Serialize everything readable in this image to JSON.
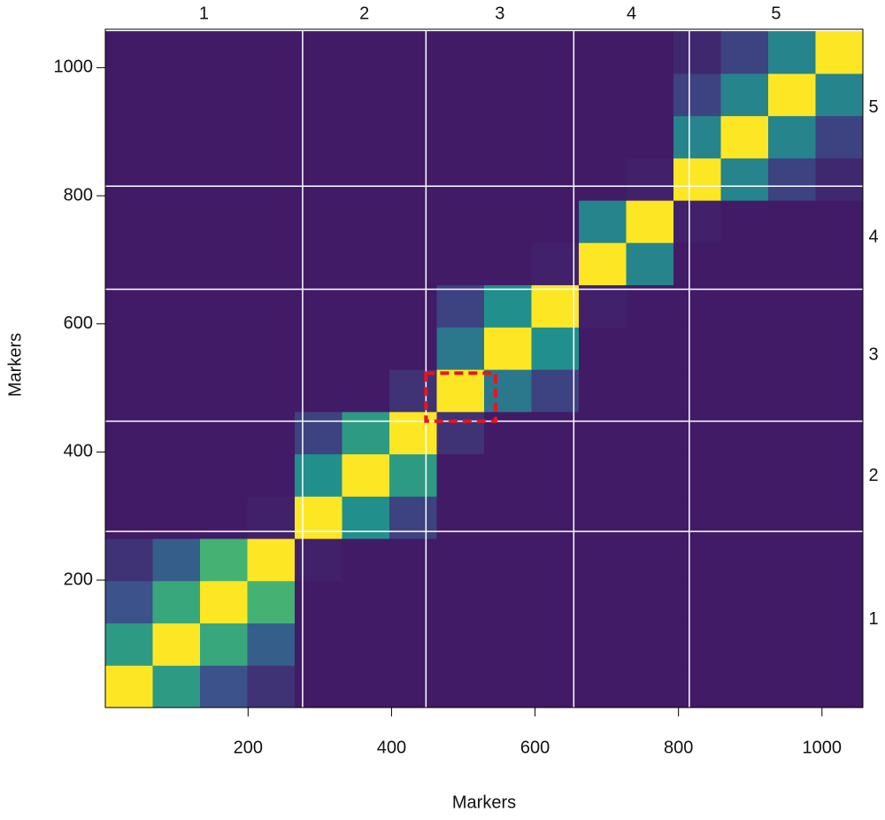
{
  "chart_data": {
    "type": "heatmap",
    "x_label": "Markers",
    "y_label": "Markers",
    "xlim": [
      1,
      1057
    ],
    "ylim": [
      1,
      1060
    ],
    "xticks": [
      200,
      400,
      600,
      800,
      1000
    ],
    "yticks": [
      200,
      400,
      600,
      800,
      1000
    ],
    "bins": [
      1,
      67,
      133,
      199,
      265,
      331,
      397,
      463,
      529,
      595,
      661,
      727,
      793,
      859,
      925,
      991,
      1057
    ],
    "zlim": [
      0,
      1
    ],
    "colors": [
      "#440154",
      "#3b528b",
      "#21908c",
      "#5dc963",
      "#fde725"
    ],
    "z": [
      [
        1,
        0.55,
        0.25,
        0.15,
        0.08,
        0.08,
        0.08,
        0.08,
        0.08,
        0.08,
        0.08,
        0.08,
        0.08,
        0.08,
        0.08,
        0.08
      ],
      [
        0.55,
        1,
        0.6,
        0.3,
        0.08,
        0.08,
        0.08,
        0.08,
        0.08,
        0.08,
        0.08,
        0.08,
        0.08,
        0.08,
        0.08,
        0.08
      ],
      [
        0.25,
        0.6,
        1,
        0.65,
        0.08,
        0.08,
        0.08,
        0.08,
        0.08,
        0.08,
        0.08,
        0.08,
        0.08,
        0.08,
        0.08,
        0.08
      ],
      [
        0.15,
        0.3,
        0.65,
        1,
        0.1,
        0.08,
        0.08,
        0.08,
        0.08,
        0.08,
        0.08,
        0.08,
        0.08,
        0.08,
        0.08,
        0.08
      ],
      [
        0.08,
        0.08,
        0.08,
        0.1,
        1,
        0.5,
        0.2,
        0.08,
        0.08,
        0.08,
        0.08,
        0.08,
        0.08,
        0.08,
        0.08,
        0.08
      ],
      [
        0.08,
        0.08,
        0.08,
        0.08,
        0.5,
        1,
        0.55,
        0.08,
        0.08,
        0.08,
        0.08,
        0.08,
        0.08,
        0.08,
        0.08,
        0.08
      ],
      [
        0.08,
        0.08,
        0.08,
        0.08,
        0.2,
        0.55,
        1,
        0.15,
        0.08,
        0.08,
        0.08,
        0.08,
        0.08,
        0.08,
        0.08,
        0.08
      ],
      [
        0.08,
        0.08,
        0.08,
        0.08,
        0.08,
        0.08,
        0.15,
        1,
        0.4,
        0.2,
        0.08,
        0.08,
        0.08,
        0.08,
        0.08,
        0.08
      ],
      [
        0.08,
        0.08,
        0.08,
        0.08,
        0.08,
        0.08,
        0.08,
        0.4,
        1,
        0.5,
        0.08,
        0.08,
        0.08,
        0.08,
        0.08,
        0.08
      ],
      [
        0.08,
        0.08,
        0.08,
        0.08,
        0.08,
        0.08,
        0.08,
        0.2,
        0.5,
        1,
        0.1,
        0.08,
        0.08,
        0.08,
        0.08,
        0.08
      ],
      [
        0.08,
        0.08,
        0.08,
        0.08,
        0.08,
        0.08,
        0.08,
        0.08,
        0.08,
        0.1,
        1,
        0.45,
        0.08,
        0.08,
        0.08,
        0.08
      ],
      [
        0.08,
        0.08,
        0.08,
        0.08,
        0.08,
        0.08,
        0.08,
        0.08,
        0.08,
        0.08,
        0.45,
        1,
        0.1,
        0.08,
        0.08,
        0.08
      ],
      [
        0.08,
        0.08,
        0.08,
        0.08,
        0.08,
        0.08,
        0.08,
        0.08,
        0.08,
        0.08,
        0.08,
        0.1,
        1,
        0.45,
        0.2,
        0.12
      ],
      [
        0.08,
        0.08,
        0.08,
        0.08,
        0.08,
        0.08,
        0.08,
        0.08,
        0.08,
        0.08,
        0.08,
        0.08,
        0.45,
        1,
        0.45,
        0.2
      ],
      [
        0.08,
        0.08,
        0.08,
        0.08,
        0.08,
        0.08,
        0.08,
        0.08,
        0.08,
        0.08,
        0.08,
        0.08,
        0.2,
        0.45,
        1,
        0.45
      ],
      [
        0.08,
        0.08,
        0.08,
        0.08,
        0.08,
        0.08,
        0.08,
        0.08,
        0.08,
        0.08,
        0.08,
        0.08,
        0.12,
        0.2,
        0.45,
        1
      ]
    ],
    "boundaries": [
      276,
      448,
      654,
      815
    ],
    "boundary_color": "#ffffff",
    "groups": [
      "1",
      "2",
      "3",
      "4",
      "5"
    ],
    "highlight": {
      "xlim": [
        448,
        545
      ],
      "ylim": [
        448,
        523
      ],
      "color": "#e8141e"
    }
  }
}
